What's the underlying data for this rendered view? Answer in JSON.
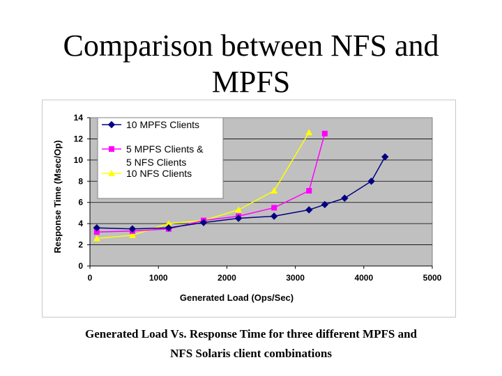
{
  "slide": {
    "title_line1": "Comparison between NFS and",
    "title_line2": "MPFS",
    "caption_line1": "Generated Load Vs. Response Time for three different MPFS and",
    "caption_line2": "NFS Solaris client combinations"
  },
  "chart_data": {
    "type": "line",
    "xlabel": "Generated Load (Ops/Sec)",
    "ylabel": "Response Time (Msec/Op)",
    "xlim": [
      0,
      5000
    ],
    "ylim": [
      0,
      14
    ],
    "xticks": [
      0,
      1000,
      2000,
      3000,
      4000,
      5000
    ],
    "yticks": [
      0,
      2,
      4,
      6,
      8,
      10,
      12,
      14
    ],
    "grid": "horizontal",
    "plot_background": "#c0c0c0",
    "legend_position": "top-left",
    "series": [
      {
        "name": "10 MPFS Clients",
        "color": "#000080",
        "marker": "diamond",
        "points": [
          [
            100,
            3.6
          ],
          [
            620,
            3.5
          ],
          [
            1150,
            3.6
          ],
          [
            1660,
            4.1
          ],
          [
            2170,
            4.5
          ],
          [
            2690,
            4.7
          ],
          [
            3200,
            5.3
          ],
          [
            3430,
            5.8
          ],
          [
            3720,
            6.4
          ],
          [
            4110,
            8.0
          ],
          [
            4310,
            10.3
          ]
        ]
      },
      {
        "name": "5 MPFS Clients & 5 NFS Clients",
        "color": "#ff00ff",
        "marker": "square",
        "points": [
          [
            100,
            3.2
          ],
          [
            620,
            3.3
          ],
          [
            1150,
            3.5
          ],
          [
            1660,
            4.3
          ],
          [
            2170,
            4.7
          ],
          [
            2690,
            5.5
          ],
          [
            3200,
            7.1
          ],
          [
            3430,
            12.5
          ]
        ]
      },
      {
        "name": "10 NFS Clients",
        "color": "#ffff00",
        "marker": "triangle",
        "points": [
          [
            100,
            2.6
          ],
          [
            620,
            2.9
          ],
          [
            1150,
            4.0
          ],
          [
            1660,
            4.3
          ],
          [
            2170,
            5.3
          ],
          [
            2690,
            7.1
          ],
          [
            3200,
            12.6
          ]
        ]
      }
    ],
    "legend_labels": [
      [
        "10 MPFS Clients"
      ],
      [
        "5 MPFS Clients &",
        "5 NFS Clients"
      ],
      [
        "10 NFS Clients"
      ]
    ]
  }
}
